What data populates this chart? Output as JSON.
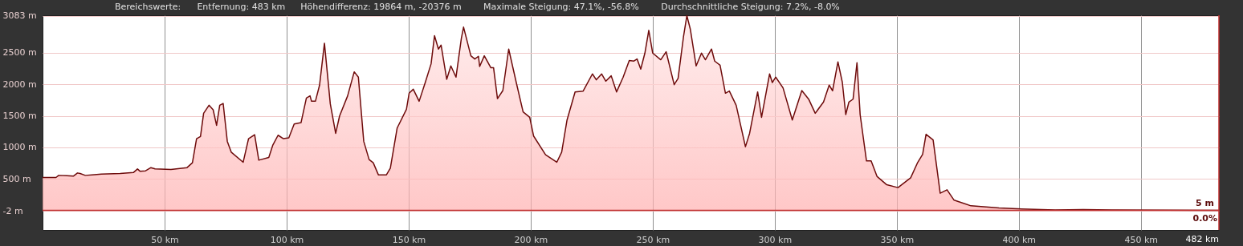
{
  "chart_data": {
    "type": "area",
    "annotations": [
      "Bereichswerte:",
      "Entfernung: 483 km",
      "Höhendifferenz: 19864 m, -20376 m",
      "Maximale Steigung: 47.1%, -56.8%",
      "Durchschnittliche Steigung: 7.2%, -8.0%",
      "0.0%"
    ],
    "series": [
      {
        "color": "#6e0b0b",
        "x": [
          0,
          5.5,
          6.6,
          9.9,
          12.6,
          14.3,
          15.4,
          17.5,
          20.3,
          24.1,
          31.8,
          37.3,
          38.9,
          40,
          42.2,
          44.4,
          46.1,
          52.6,
          59.2,
          61.4,
          63.1,
          64.7,
          66,
          68.2,
          69.9,
          71.3,
          72.6,
          74,
          75.7,
          77.3,
          82.2,
          84.4,
          86.9,
          88.6,
          92.7,
          94.3,
          96.5,
          98.7,
          100.9,
          103.1,
          105.9,
          108.1,
          109.6,
          110.2,
          111.8,
          113.5,
          115.5,
          117.9,
          120.1,
          121.7,
          125,
          127.7,
          129.4,
          131.6,
          133.8,
          135.5,
          137.6,
          140.9,
          142.5,
          145.3,
          149.1,
          150.2,
          151.9,
          154.3,
          156.8,
          159.2,
          160.6,
          162.2,
          163.3,
          165.6,
          167.3,
          169.4,
          171.6,
          172.5,
          175.5,
          177.1,
          178.6,
          179.1,
          181,
          183.7,
          184.8,
          186.4,
          188.6,
          191,
          194.1,
          196.9,
          199.6,
          201.2,
          206.1,
          210.7,
          212.7,
          214.9,
          218.2,
          221.5,
          225.3,
          226.9,
          229.1,
          230.8,
          233,
          235.2,
          237.9,
          240.4,
          242.3,
          243.6,
          245.1,
          246.8,
          248.4,
          250,
          253.3,
          255.5,
          258.8,
          260.4,
          262.6,
          264,
          265.4,
          267.8,
          270,
          271.6,
          274.1,
          275.4,
          277.6,
          279.8,
          281.4,
          284.2,
          288,
          289.7,
          293,
          294.6,
          297.9,
          299,
          300.4,
          303.4,
          307.2,
          311.1,
          313.9,
          316.6,
          320,
          322.3,
          323.7,
          325.9,
          327.7,
          329.1,
          330.4,
          332.1,
          333.7,
          335,
          337.6,
          339.5,
          341.9,
          345.9,
          350.5,
          355.7,
          358.6,
          360.6,
          362,
          364.9,
          367.8,
          370.6,
          373.5,
          380.4,
          391.9,
          403.4,
          414.9,
          426.4,
          437.9,
          482
        ],
        "values": [
          525,
          525,
          558,
          554,
          546,
          596,
          588,
          558,
          567,
          580,
          588,
          605,
          660,
          622,
          630,
          681,
          660,
          651,
          681,
          757,
          1138,
          1172,
          1540,
          1667,
          1595,
          1349,
          1667,
          1696,
          1096,
          926,
          766,
          1138,
          1201,
          799,
          842,
          1032,
          1193,
          1138,
          1151,
          1371,
          1392,
          1781,
          1815,
          1730,
          1730,
          1984,
          2648,
          1688,
          1222,
          1497,
          1815,
          2195,
          2111,
          1096,
          808,
          757,
          567,
          567,
          673,
          1307,
          1603,
          1857,
          1920,
          1730,
          2026,
          2322,
          2766,
          2555,
          2618,
          2077,
          2288,
          2111,
          2724,
          2902,
          2449,
          2398,
          2441,
          2280,
          2449,
          2259,
          2259,
          1772,
          1899,
          2555,
          2026,
          1561,
          1476,
          1180,
          884,
          766,
          926,
          1434,
          1878,
          1891,
          2162,
          2069,
          2162,
          2047,
          2132,
          1878,
          2111,
          2373,
          2365,
          2398,
          2238,
          2491,
          2851,
          2491,
          2386,
          2513,
          1992,
          2090,
          2745,
          3083,
          2872,
          2288,
          2491,
          2386,
          2555,
          2365,
          2301,
          1857,
          1891,
          1667,
          1011,
          1222,
          1878,
          1476,
          2162,
          2026,
          2111,
          1942,
          1434,
          1899,
          1764,
          1540,
          1718,
          1985,
          1896,
          2353,
          2029,
          1519,
          1718,
          1763,
          2340,
          1519,
          787,
          787,
          543,
          410,
          365,
          520,
          765,
          890,
          1208,
          1119,
          277,
          330,
          166,
          77,
          42,
          24,
          11,
          18,
          11,
          5
        ]
      }
    ],
    "xlim": [
      0,
      482
    ],
    "xticks": [
      {
        "value": 50,
        "label": "50 km"
      },
      {
        "value": 100,
        "label": "100 km"
      },
      {
        "value": 150,
        "label": "150 km"
      },
      {
        "value": 200,
        "label": "200 km"
      },
      {
        "value": 250,
        "label": "250 km"
      },
      {
        "value": 300,
        "label": "300 km"
      },
      {
        "value": 350,
        "label": "350 km"
      },
      {
        "value": 400,
        "label": "400 km"
      },
      {
        "value": 450,
        "label": "450 km"
      }
    ],
    "ylim": [
      -305,
      3090
    ],
    "yticks": [
      {
        "value": -2,
        "label": "-2 m"
      },
      {
        "value": 500,
        "label": "500 m"
      },
      {
        "value": 1000,
        "label": "1000 m"
      },
      {
        "value": 1500,
        "label": "1500 m"
      },
      {
        "value": 2000,
        "label": "2000 m"
      },
      {
        "value": 2500,
        "label": "2500 m"
      },
      {
        "value": 3083,
        "label": "3083 m"
      }
    ],
    "ref_lines": [
      {
        "axis": "y",
        "value": 5,
        "label": "5 m",
        "color": "#c03030"
      },
      {
        "axis": "x",
        "value": 482,
        "label": "482 km",
        "color": "#c03030"
      }
    ],
    "grid": true
  }
}
